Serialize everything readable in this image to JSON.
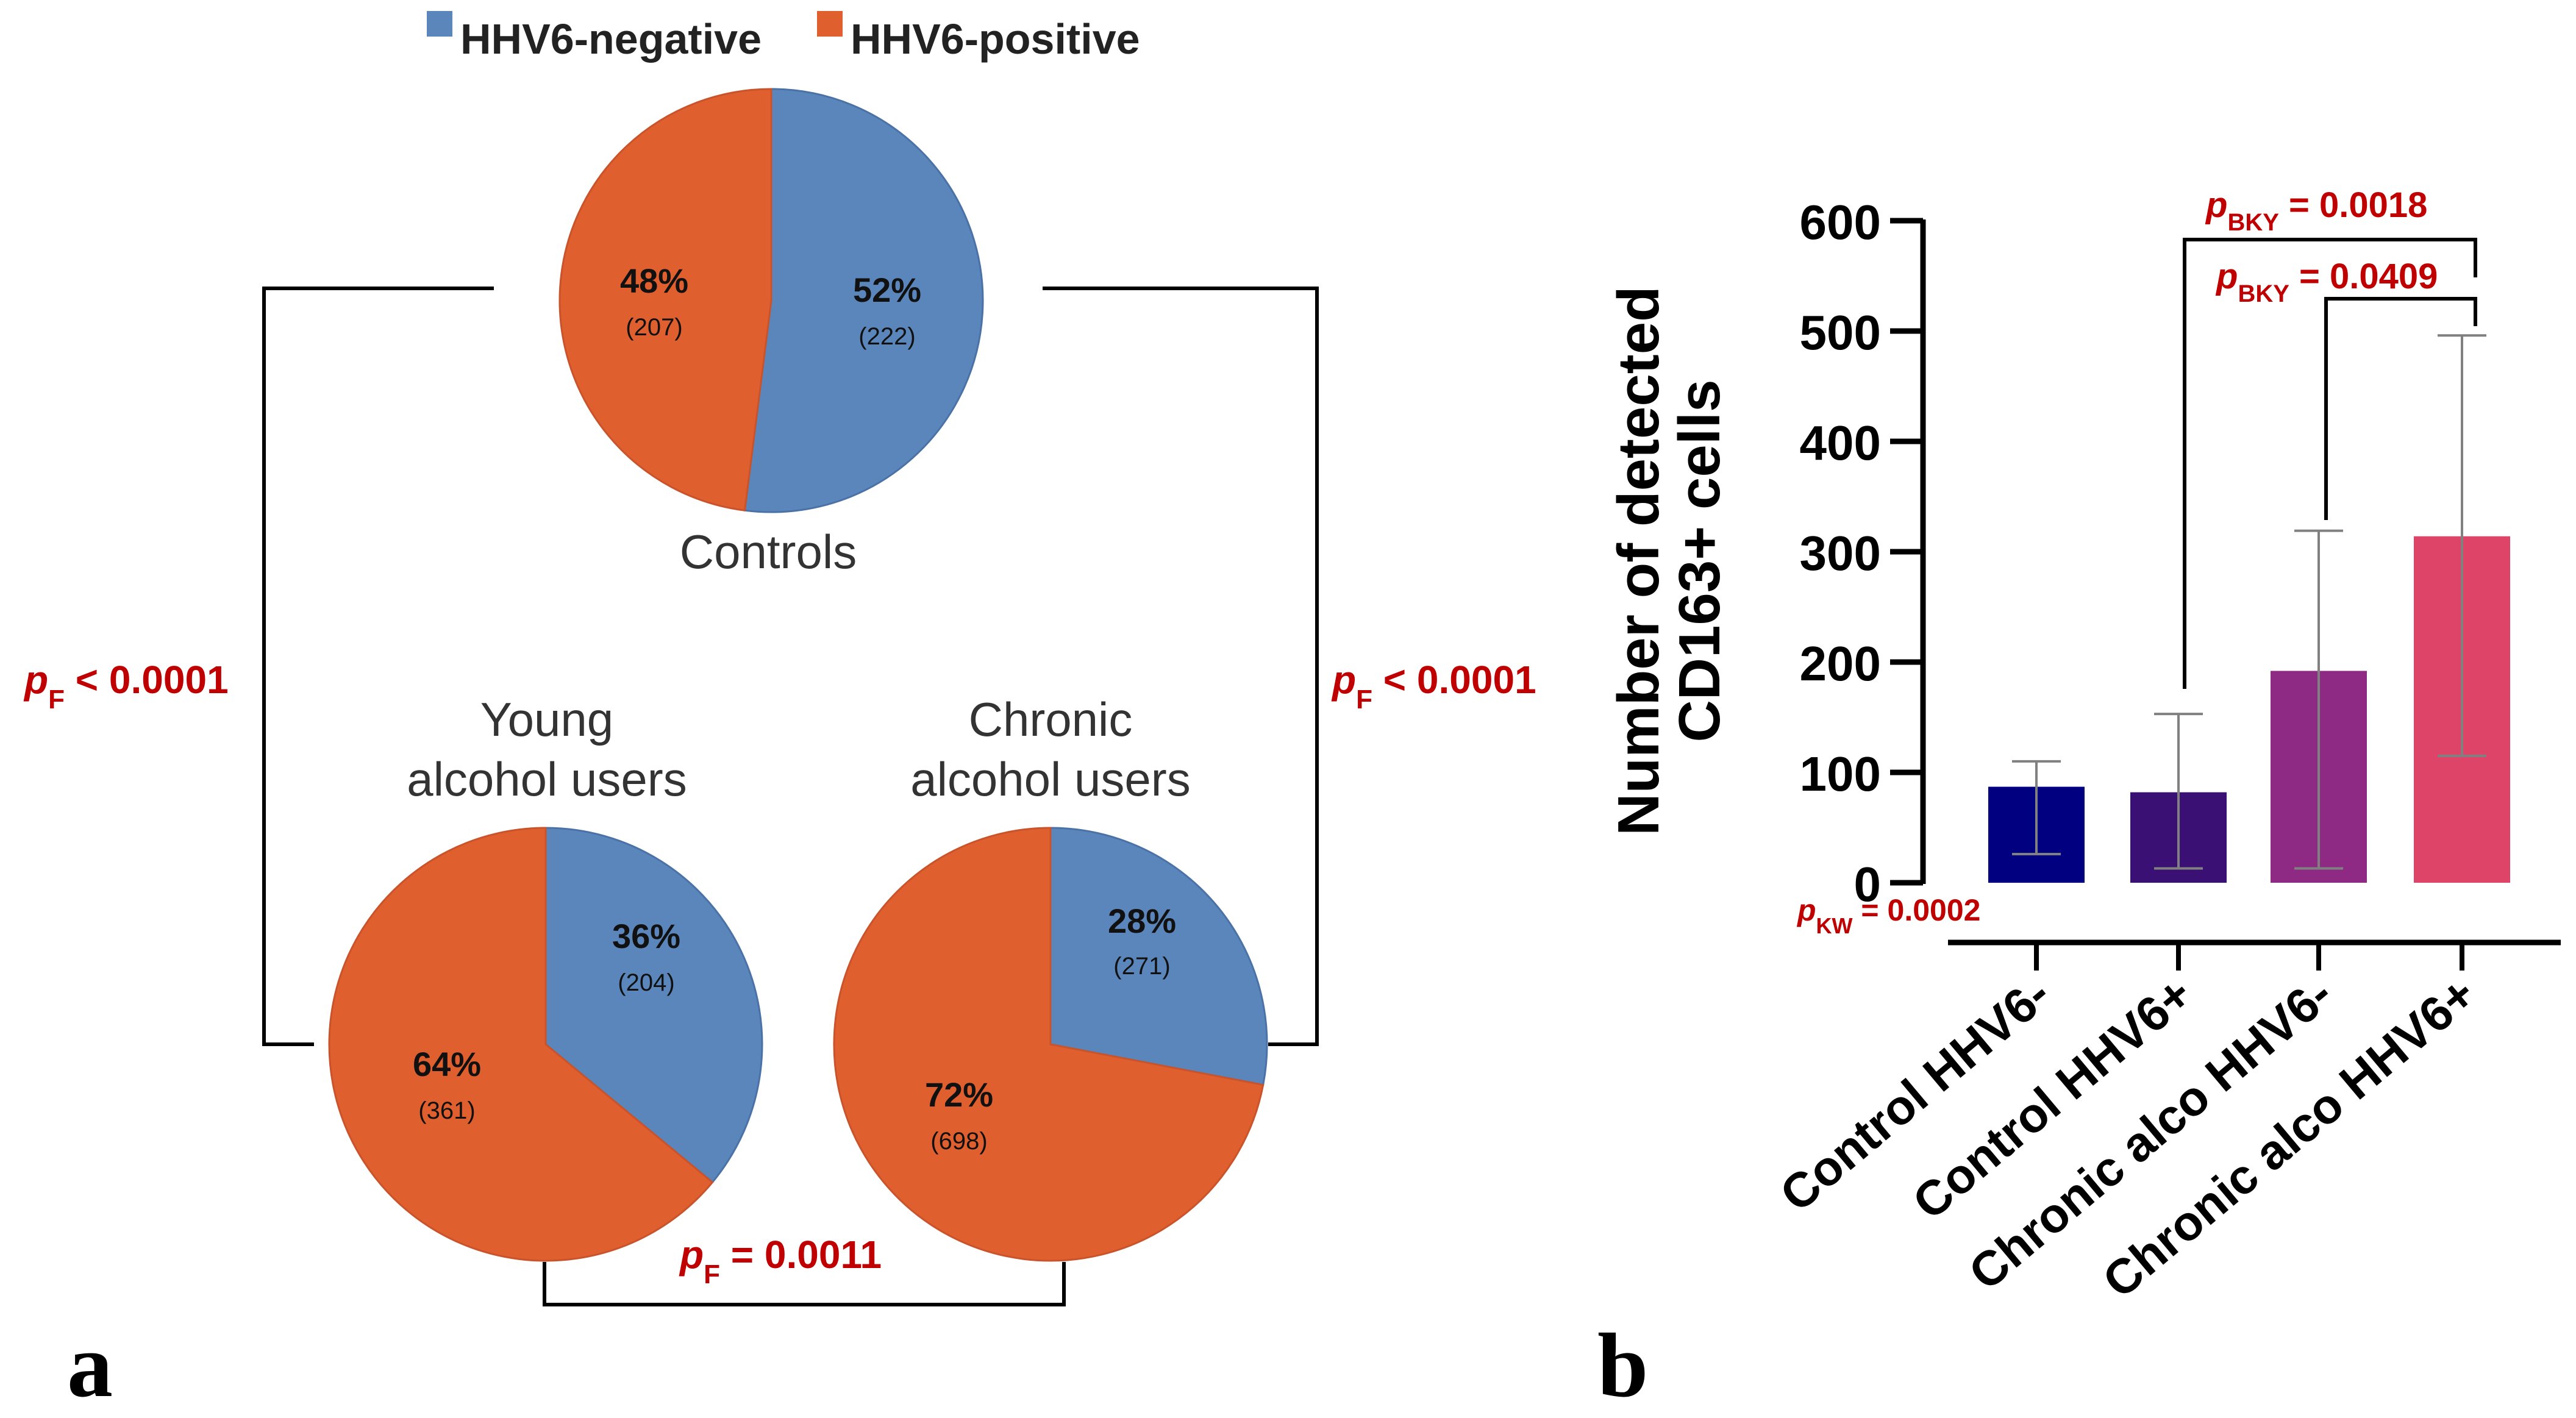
{
  "colors": {
    "negative": "#5b86bb",
    "positive": "#e05f2f",
    "pval": "#c00000",
    "bracket": "#000000",
    "bars": [
      "#000080",
      "#3a1075",
      "#8e2a83",
      "#de4468"
    ],
    "errorbar": "#808080"
  },
  "panel_a": {
    "label": "a",
    "legend": {
      "negative": "HHV6-negative",
      "positive": "HHV6-positive"
    },
    "bracket_left": {
      "p_letter": "p",
      "p_sub": "F",
      "p_text": " < 0.0001"
    },
    "bracket_right": {
      "p_letter": "p",
      "p_sub": "F",
      "p_text": " < 0.0001"
    },
    "bracket_bottom": {
      "p_letter": "p",
      "p_sub": "F",
      "p_text": " = 0.0011"
    }
  },
  "panel_b": {
    "label": "b",
    "p_kw": {
      "p_letter": "p",
      "p_sub": "KW",
      "p_text": " = 0.0002"
    },
    "p_bky1": {
      "p_letter": "p",
      "p_sub": "BKY",
      "p_text": " = 0.0018"
    },
    "p_bky2": {
      "p_letter": "p",
      "p_sub": "BKY",
      "p_text": " = 0.0409"
    }
  },
  "chart_data": [
    {
      "type": "pie",
      "title": "Controls",
      "slices": [
        {
          "name": "HHV6-negative",
          "percent": 52,
          "label": "52%",
          "count": "(222)"
        },
        {
          "name": "HHV6-positive",
          "percent": 48,
          "label": "48%",
          "count": "(207)"
        }
      ]
    },
    {
      "type": "pie",
      "title_lines": [
        "Young",
        "alcohol users"
      ],
      "slices": [
        {
          "name": "HHV6-negative",
          "percent": 36,
          "label": "36%",
          "count": "(204)"
        },
        {
          "name": "HHV6-positive",
          "percent": 64,
          "label": "64%",
          "count": "(361)"
        }
      ]
    },
    {
      "type": "pie",
      "title_lines": [
        "Chronic",
        "alcohol users"
      ],
      "slices": [
        {
          "name": "HHV6-negative",
          "percent": 28,
          "label": "28%",
          "count": "(271)"
        },
        {
          "name": "HHV6-positive",
          "percent": 72,
          "label": "72%",
          "count": "(698)"
        }
      ]
    },
    {
      "type": "bar",
      "categories": [
        "Control HHV6-",
        "Control HHV6+",
        "Chronic alco HHV6-",
        "Chronic alco HHV6+"
      ],
      "values": [
        87,
        82,
        192,
        314
      ],
      "error_low": [
        26,
        13,
        13,
        115
      ],
      "error_high": [
        110,
        153,
        319,
        496
      ],
      "ylabel_lines": [
        "Number of detected",
        "CD163+ cells"
      ],
      "xlabel": "",
      "ylim": [
        0,
        600
      ],
      "yticks": [
        0,
        100,
        200,
        300,
        400,
        500,
        600
      ],
      "ytick_labels": [
        "0",
        "100",
        "200",
        "300",
        "400",
        "500",
        "600"
      ]
    }
  ]
}
